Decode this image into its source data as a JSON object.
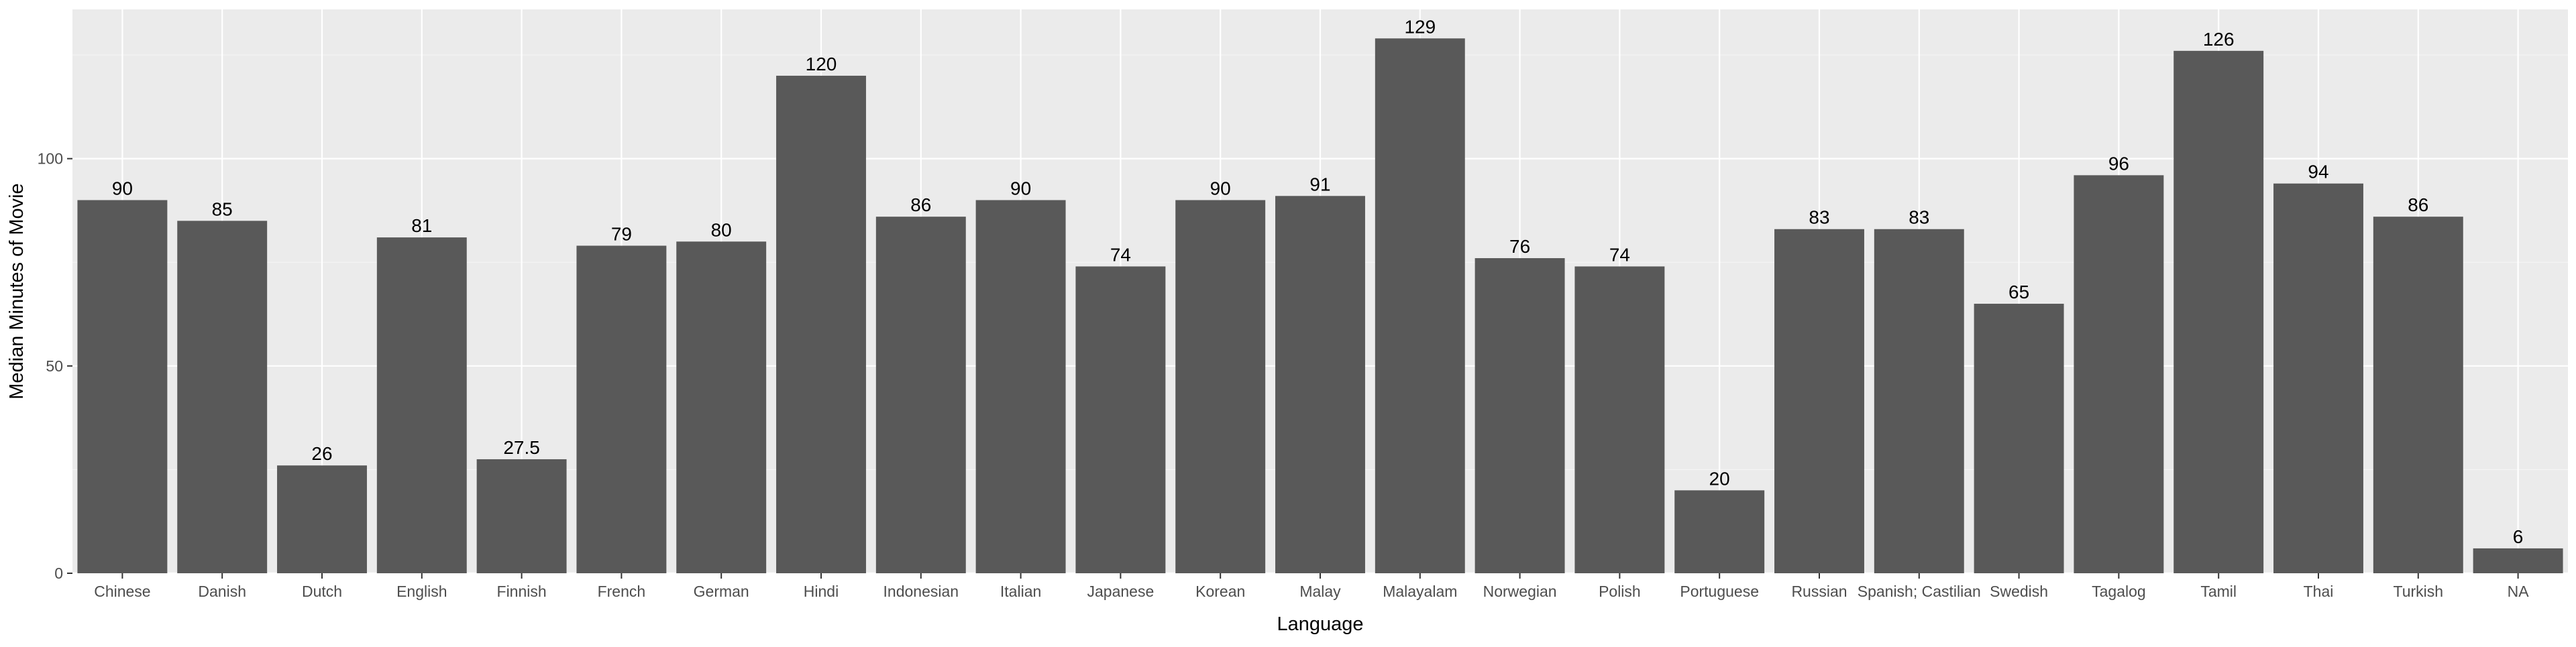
{
  "chart_data": {
    "type": "bar",
    "xlabel": "Language",
    "ylabel": "Median Minutes of Movie",
    "categories": [
      "Chinese",
      "Danish",
      "Dutch",
      "English",
      "Finnish",
      "French",
      "German",
      "Hindi",
      "Indonesian",
      "Italian",
      "Japanese",
      "Korean",
      "Malay",
      "Malayalam",
      "Norwegian",
      "Polish",
      "Portuguese",
      "Russian",
      "Spanish; Castilian",
      "Swedish",
      "Tagalog",
      "Tamil",
      "Thai",
      "Turkish",
      "NA"
    ],
    "values": [
      90,
      85,
      26,
      81,
      27.5,
      79,
      80,
      120,
      86,
      90,
      74,
      90,
      91,
      129,
      76,
      74,
      20,
      83,
      83,
      65,
      96,
      126,
      94,
      86,
      6
    ],
    "data_labels": [
      "90",
      "85",
      "26",
      "81",
      "27.5",
      "79",
      "80",
      "120",
      "86",
      "90",
      "74",
      "90",
      "91",
      "129",
      "76",
      "74",
      "20",
      "83",
      "83",
      "65",
      "96",
      "126",
      "94",
      "86",
      "6"
    ],
    "yticks": [
      0,
      50,
      100
    ],
    "ytick_labels": [
      "0",
      "50",
      "100"
    ],
    "ylim": [
      0,
      136
    ],
    "grid": true,
    "legend": "none",
    "colors": {
      "panel_background": "#EBEBEB",
      "grid_major": "#FFFFFF",
      "grid_minor": "#F4F4F4",
      "bar_fill": "#595959",
      "tick_label": "#4D4D4D",
      "axis_title": "#000000",
      "data_label": "#000000"
    }
  }
}
